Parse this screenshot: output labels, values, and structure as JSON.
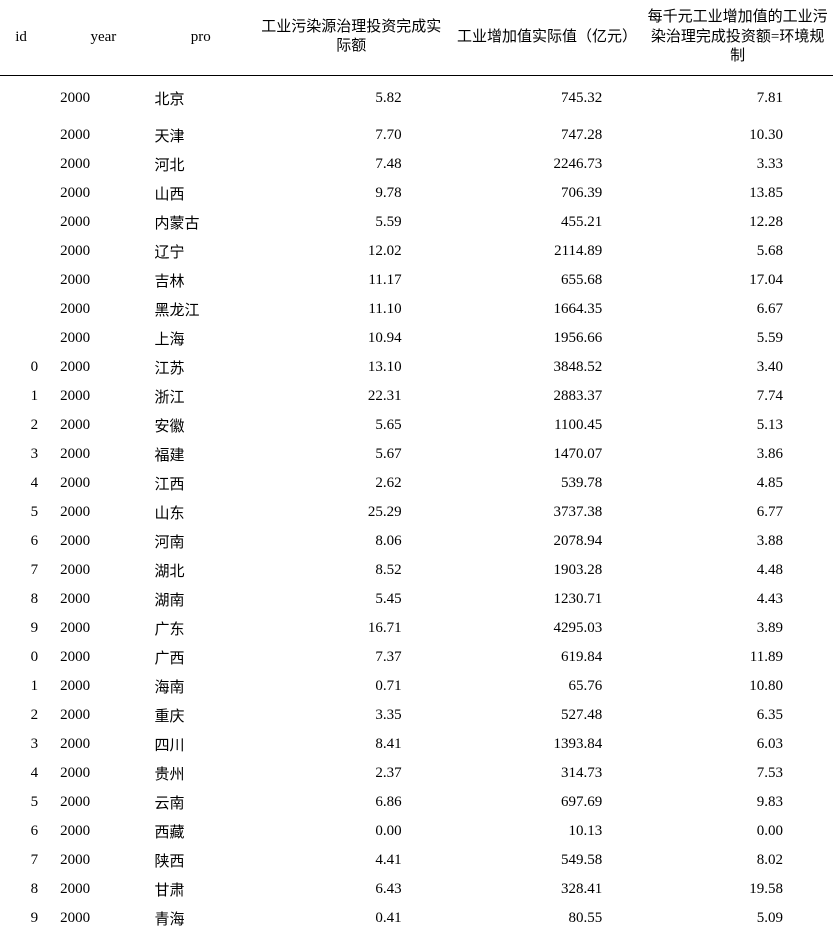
{
  "table": {
    "columns": {
      "id": "id",
      "year": "year",
      "pro": "pro",
      "v1": "工业污染源治理投资完成实际额",
      "v2": "工业增加值实际值（亿元）",
      "v3": "每千元工业增加值的工业污染治理完成投资额=环境规制"
    },
    "rows": [
      {
        "id": "",
        "year": "2000",
        "pro": "北京",
        "v1": "5.82",
        "v2": "745.32",
        "v3": "7.81"
      },
      {
        "id": "",
        "year": "2000",
        "pro": "天津",
        "v1": "7.70",
        "v2": "747.28",
        "v3": "10.30"
      },
      {
        "id": "",
        "year": "2000",
        "pro": "河北",
        "v1": "7.48",
        "v2": "2246.73",
        "v3": "3.33"
      },
      {
        "id": "",
        "year": "2000",
        "pro": "山西",
        "v1": "9.78",
        "v2": "706.39",
        "v3": "13.85"
      },
      {
        "id": "",
        "year": "2000",
        "pro": "内蒙古",
        "v1": "5.59",
        "v2": "455.21",
        "v3": "12.28"
      },
      {
        "id": "",
        "year": "2000",
        "pro": "辽宁",
        "v1": "12.02",
        "v2": "2114.89",
        "v3": "5.68"
      },
      {
        "id": "",
        "year": "2000",
        "pro": "吉林",
        "v1": "11.17",
        "v2": "655.68",
        "v3": "17.04"
      },
      {
        "id": "",
        "year": "2000",
        "pro": "黑龙江",
        "v1": "11.10",
        "v2": "1664.35",
        "v3": "6.67"
      },
      {
        "id": "",
        "year": "2000",
        "pro": "上海",
        "v1": "10.94",
        "v2": "1956.66",
        "v3": "5.59"
      },
      {
        "id": "0",
        "year": "2000",
        "pro": "江苏",
        "v1": "13.10",
        "v2": "3848.52",
        "v3": "3.40"
      },
      {
        "id": "1",
        "year": "2000",
        "pro": "浙江",
        "v1": "22.31",
        "v2": "2883.37",
        "v3": "7.74"
      },
      {
        "id": "2",
        "year": "2000",
        "pro": "安徽",
        "v1": "5.65",
        "v2": "1100.45",
        "v3": "5.13"
      },
      {
        "id": "3",
        "year": "2000",
        "pro": "福建",
        "v1": "5.67",
        "v2": "1470.07",
        "v3": "3.86"
      },
      {
        "id": "4",
        "year": "2000",
        "pro": "江西",
        "v1": "2.62",
        "v2": "539.78",
        "v3": "4.85"
      },
      {
        "id": "5",
        "year": "2000",
        "pro": "山东",
        "v1": "25.29",
        "v2": "3737.38",
        "v3": "6.77"
      },
      {
        "id": "6",
        "year": "2000",
        "pro": "河南",
        "v1": "8.06",
        "v2": "2078.94",
        "v3": "3.88"
      },
      {
        "id": "7",
        "year": "2000",
        "pro": "湖北",
        "v1": "8.52",
        "v2": "1903.28",
        "v3": "4.48"
      },
      {
        "id": "8",
        "year": "2000",
        "pro": "湖南",
        "v1": "5.45",
        "v2": "1230.71",
        "v3": "4.43"
      },
      {
        "id": "9",
        "year": "2000",
        "pro": "广东",
        "v1": "16.71",
        "v2": "4295.03",
        "v3": "3.89"
      },
      {
        "id": "0",
        "year": "2000",
        "pro": "广西",
        "v1": "7.37",
        "v2": "619.84",
        "v3": "11.89"
      },
      {
        "id": "1",
        "year": "2000",
        "pro": "海南",
        "v1": "0.71",
        "v2": "65.76",
        "v3": "10.80"
      },
      {
        "id": "2",
        "year": "2000",
        "pro": "重庆",
        "v1": "3.35",
        "v2": "527.48",
        "v3": "6.35"
      },
      {
        "id": "3",
        "year": "2000",
        "pro": "四川",
        "v1": "8.41",
        "v2": "1393.84",
        "v3": "6.03"
      },
      {
        "id": "4",
        "year": "2000",
        "pro": "贵州",
        "v1": "2.37",
        "v2": "314.73",
        "v3": "7.53"
      },
      {
        "id": "5",
        "year": "2000",
        "pro": "云南",
        "v1": "6.86",
        "v2": "697.69",
        "v3": "9.83"
      },
      {
        "id": "6",
        "year": "2000",
        "pro": "西藏",
        "v1": "0.00",
        "v2": "10.13",
        "v3": "0.00"
      },
      {
        "id": "7",
        "year": "2000",
        "pro": "陕西",
        "v1": "4.41",
        "v2": "549.58",
        "v3": "8.02"
      },
      {
        "id": "8",
        "year": "2000",
        "pro": "甘肃",
        "v1": "6.43",
        "v2": "328.41",
        "v3": "19.58"
      },
      {
        "id": "9",
        "year": "2000",
        "pro": "青海",
        "v1": "0.41",
        "v2": "80.55",
        "v3": "5.09"
      }
    ]
  }
}
